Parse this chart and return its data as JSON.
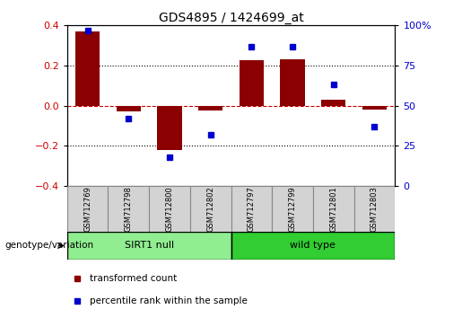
{
  "title": "GDS4895 / 1424699_at",
  "samples": [
    "GSM712769",
    "GSM712798",
    "GSM712800",
    "GSM712802",
    "GSM712797",
    "GSM712799",
    "GSM712801",
    "GSM712803"
  ],
  "red_bars": [
    0.37,
    -0.03,
    -0.22,
    -0.025,
    0.225,
    0.23,
    0.03,
    -0.02
  ],
  "blue_dots": [
    0.97,
    0.42,
    0.18,
    0.32,
    0.87,
    0.87,
    0.63,
    0.37
  ],
  "groups": [
    {
      "label": "SIRT1 null",
      "start": 0,
      "end": 4,
      "color": "#90EE90"
    },
    {
      "label": "wild type",
      "start": 4,
      "end": 8,
      "color": "#32CD32"
    }
  ],
  "ylim_left": [
    -0.4,
    0.4
  ],
  "yticks_left": [
    -0.4,
    -0.2,
    0.0,
    0.2,
    0.4
  ],
  "yticks_right": [
    0,
    25,
    50,
    75,
    100
  ],
  "hlines": [
    0.2,
    0.0,
    -0.2
  ],
  "bar_color": "#8B0000",
  "dot_color": "#0000CD",
  "zero_line_color": "#CC0000",
  "background_color": "#ffffff",
  "legend_items": [
    {
      "label": "transformed count",
      "color": "#8B0000"
    },
    {
      "label": "percentile rank within the sample",
      "color": "#0000CD"
    }
  ],
  "genotype_label": "genotype/variation",
  "bar_width": 0.6,
  "xlim": [
    -0.5,
    7.5
  ]
}
